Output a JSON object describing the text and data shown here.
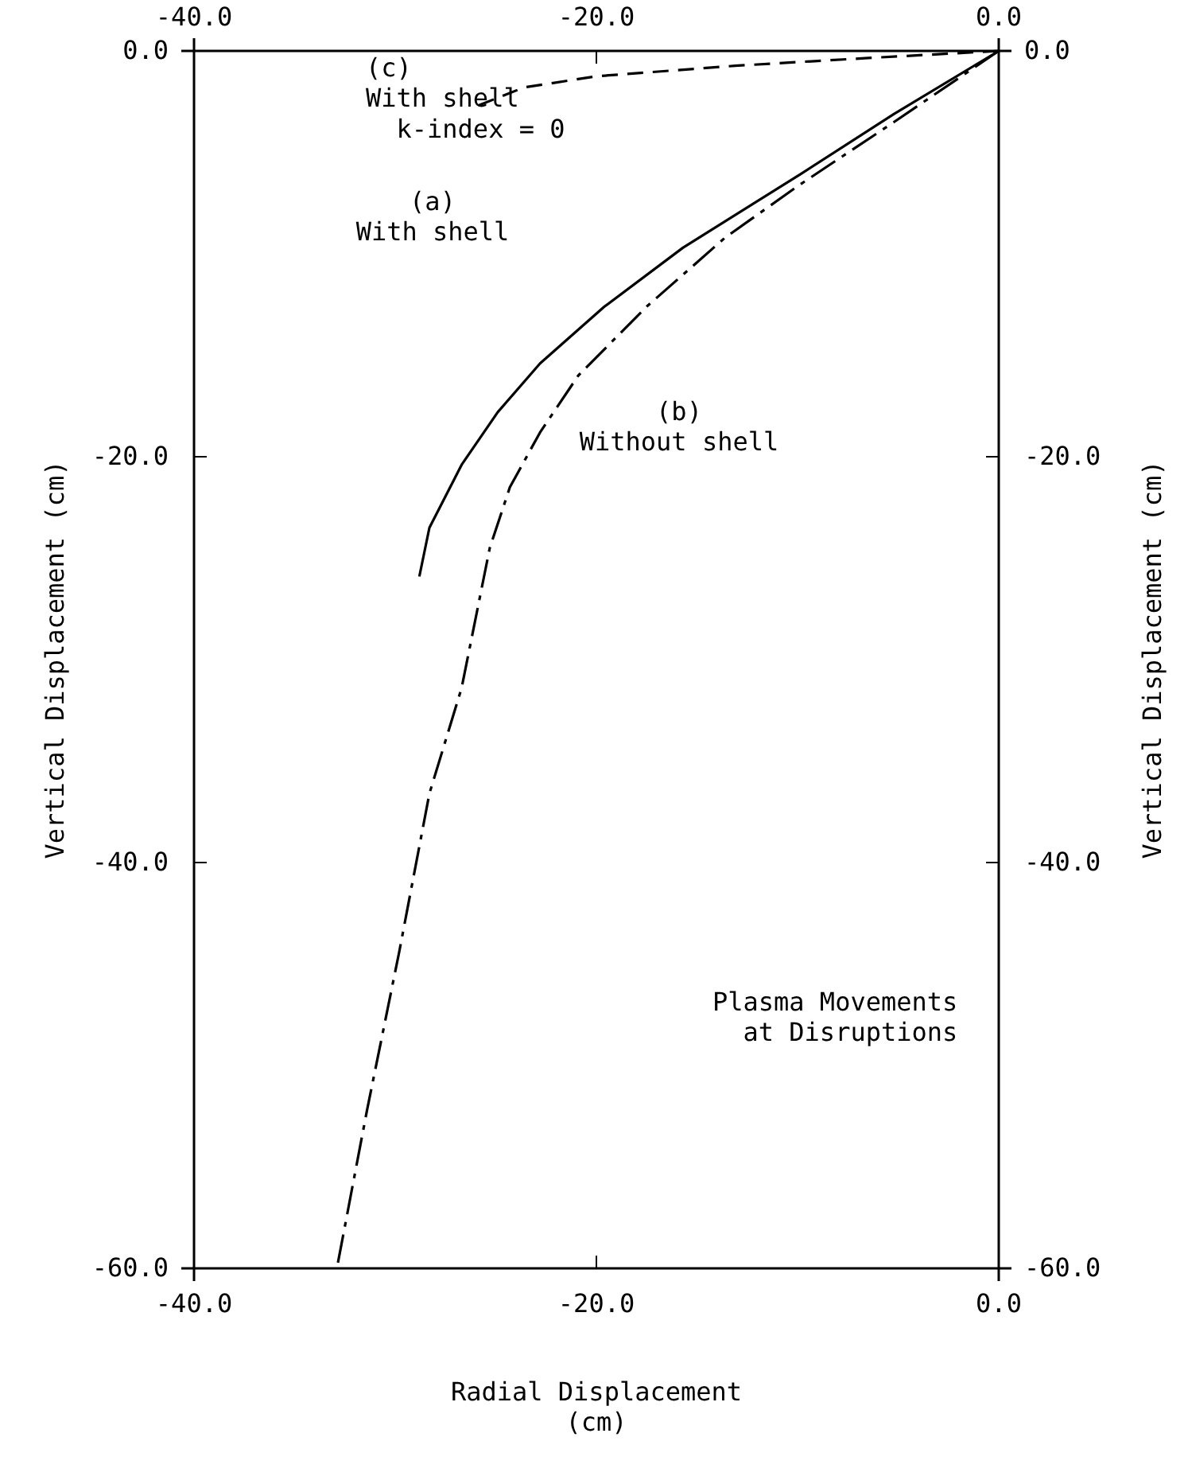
{
  "chart_data": {
    "type": "line",
    "xlabel": "Radial Displacement\n(cm)",
    "ylabel": "Vertical Displacement (cm)",
    "y2label": "Vertical Displacement (cm)",
    "xlim": [
      -40,
      0
    ],
    "xticks": [
      {
        "value": -40,
        "label": "-40.0"
      },
      {
        "value": -20,
        "label": "-20.0"
      },
      {
        "value": 0,
        "label": "0.0"
      }
    ],
    "x2lim": [
      -40,
      0
    ],
    "x2ticks": [
      {
        "value": -40,
        "label": "-40.0"
      },
      {
        "value": -20,
        "label": "-20.0"
      },
      {
        "value": 0,
        "label": "0.0"
      }
    ],
    "ylim": [
      -60,
      0
    ],
    "yticks": [
      {
        "value": -60,
        "label": "-60.0"
      },
      {
        "value": -40,
        "label": "-40.0"
      },
      {
        "value": -20,
        "label": "-20.0"
      },
      {
        "value": 0,
        "label": "0.0"
      }
    ],
    "y2lim": [
      -60,
      0
    ],
    "y2ticks": [
      {
        "value": -60,
        "label": "-60.0"
      },
      {
        "value": -40,
        "label": "-40.0"
      },
      {
        "value": -20,
        "label": "-20.0"
      },
      {
        "value": 0,
        "label": "0.0"
      }
    ],
    "grid": false,
    "marker": "none",
    "series": [
      {
        "color": "#000000",
        "line_style": "solid",
        "x": [
          0,
          -5.2,
          -9.9,
          -15.7,
          -19.6,
          -22.8,
          -24.9,
          -26.7,
          -28.3,
          -28.8
        ],
        "values": [
          0,
          -3.1,
          -6.1,
          -9.7,
          -12.6,
          -15.4,
          -17.8,
          -20.4,
          -23.5,
          -25.9
        ]
      },
      {
        "color": "#000000",
        "line_style": "dashdot",
        "x": [
          0,
          -5.2,
          -9.9,
          -13.6,
          -17.5,
          -20.9,
          -22.8,
          -24.3,
          -25.3,
          -26.7,
          -28.3,
          -29.8,
          -31.4,
          -32.9
        ],
        "values": [
          0,
          -3.5,
          -6.6,
          -9.2,
          -12.6,
          -16.0,
          -18.8,
          -21.5,
          -24.5,
          -31.4,
          -36.6,
          -44.4,
          -52.2,
          -60
        ]
      },
      {
        "color": "#000000",
        "line_style": "dashed",
        "x": [
          0,
          -6.5,
          -13.1,
          -20.0,
          -23.6,
          -25.9
        ],
        "values": [
          0,
          -0.35,
          -0.73,
          -1.25,
          -1.8,
          -2.7
        ]
      }
    ],
    "annotations": [
      "(a)\nWith shell",
      "(b)\nWithout shell",
      "(c)\nWith shell\n  k-index = 0",
      "Plasma Movements\n  at Disruptions"
    ]
  }
}
